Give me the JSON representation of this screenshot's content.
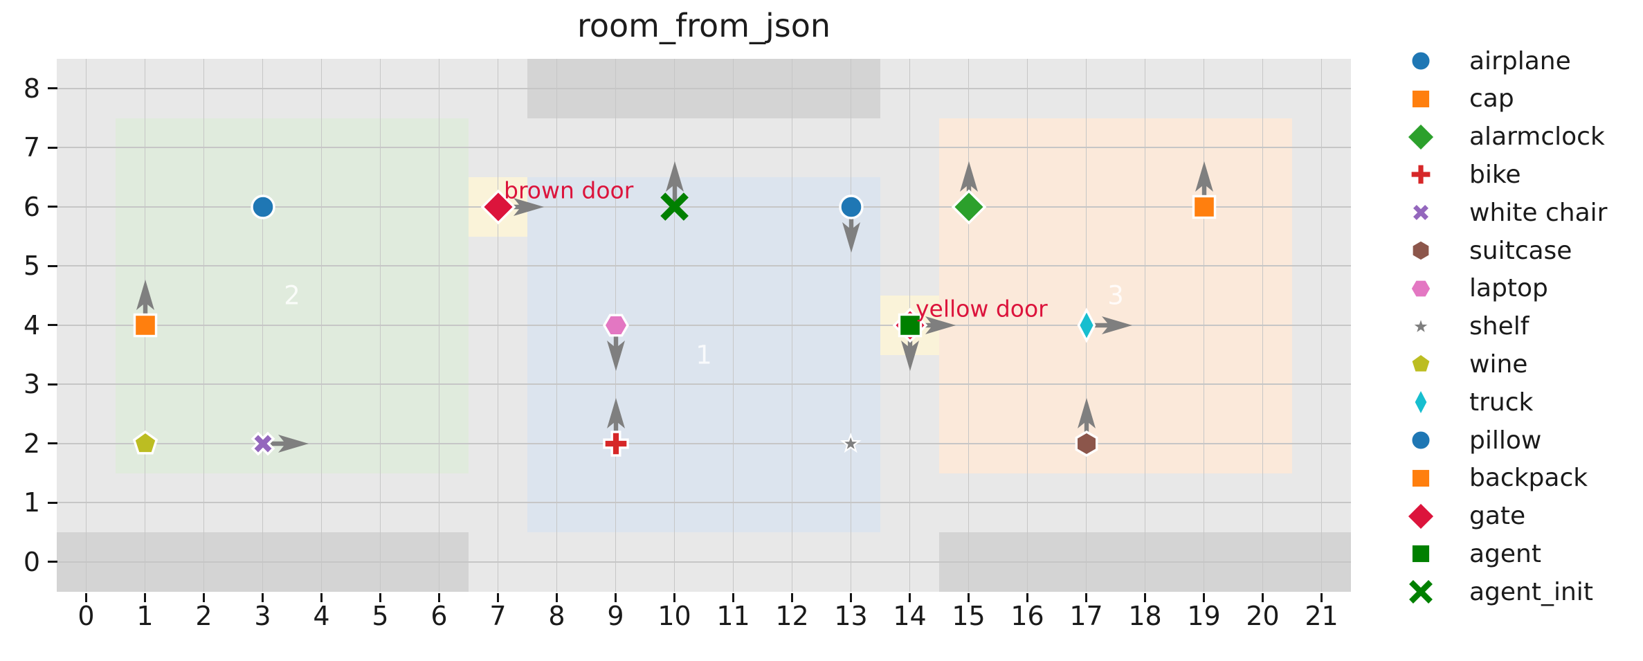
{
  "title": "room_from_json",
  "colors": {
    "figure_bg": "#ffffff",
    "plot_bg": "#e8e8e8",
    "wall_band": "#d4d4d4",
    "grid": "#c6c6c6",
    "room_1": "#dce4ee",
    "room_2": "#e0ebdd",
    "room_3": "#fbe9da",
    "door_cell": "#faf3d9",
    "door_label": "#dc143c",
    "arrow": "#7f7f7f",
    "room_label": "#f5f5f5",
    "tick_label": "#1a1a1a",
    "marker_edge": "#ffffff"
  },
  "chart_data": {
    "type": "scatter",
    "title": "room_from_json",
    "xlabel": "",
    "ylabel": "",
    "xlim": [
      -0.5,
      21.5
    ],
    "ylim": [
      -0.5,
      8.5
    ],
    "xticks": [
      0,
      1,
      2,
      3,
      4,
      5,
      6,
      7,
      8,
      9,
      10,
      11,
      12,
      13,
      14,
      15,
      16,
      17,
      18,
      19,
      20,
      21
    ],
    "yticks": [
      0,
      1,
      2,
      3,
      4,
      5,
      6,
      7,
      8
    ],
    "grid": true,
    "legend_position": "right-outside",
    "rooms": [
      {
        "id": "1",
        "x0": 7.5,
        "y0": 0.5,
        "x1": 13.5,
        "y1": 6.5,
        "color_key": "room_1",
        "label": "1",
        "label_x": 10.5,
        "label_y": 3.5
      },
      {
        "id": "2",
        "x0": 0.5,
        "y0": 1.5,
        "x1": 6.5,
        "y1": 7.5,
        "color_key": "room_2",
        "label": "2",
        "label_x": 3.5,
        "label_y": 4.5
      },
      {
        "id": "3",
        "x0": 14.5,
        "y0": 1.5,
        "x1": 20.5,
        "y1": 7.5,
        "color_key": "room_3",
        "label": "3",
        "label_x": 17.5,
        "label_y": 4.5
      }
    ],
    "wall_bands": [
      {
        "x0": 7.5,
        "y0": 7.5,
        "x1": 13.5,
        "y1": 8.5
      },
      {
        "x0": -0.5,
        "y0": -0.5,
        "x1": 6.5,
        "y1": 0.5
      },
      {
        "x0": 14.5,
        "y0": -0.5,
        "x1": 21.5,
        "y1": 0.5
      }
    ],
    "door_cells": [
      {
        "x": 7,
        "y": 6,
        "label": "brown door",
        "label_x": 7.1,
        "label_y": 6.28
      },
      {
        "x": 14,
        "y": 4,
        "label": "yellow door",
        "label_x": 14.1,
        "label_y": 4.28
      }
    ],
    "objects": [
      {
        "name": "airplane",
        "marker": "circle",
        "color": "#1f77b4",
        "x": 3,
        "y": 6,
        "dir": null
      },
      {
        "name": "cap",
        "marker": "square",
        "color": "#ff7f0e",
        "x": 1,
        "y": 4,
        "dir": "up"
      },
      {
        "name": "wine",
        "marker": "pentagon",
        "color": "#bcbd22",
        "x": 1,
        "y": 2,
        "dir": null
      },
      {
        "name": "white chair",
        "marker": "x-filled",
        "color": "#9467bd",
        "x": 3,
        "y": 2,
        "dir": "right"
      },
      {
        "name": "gate",
        "marker": "diamond",
        "color": "#dc143c",
        "x": 7,
        "y": 6,
        "dir": "right"
      },
      {
        "name": "agent_init",
        "marker": "x-stroke",
        "color": "#008000",
        "x": 10,
        "y": 6,
        "dir": "up"
      },
      {
        "name": "laptop",
        "marker": "hexagon-flat",
        "color": "#e377c2",
        "x": 9,
        "y": 4,
        "dir": "down"
      },
      {
        "name": "bike",
        "marker": "plus",
        "color": "#d62728",
        "x": 9,
        "y": 2,
        "dir": "up"
      },
      {
        "name": "pillow",
        "marker": "circle",
        "color": "#1f77b4",
        "x": 13,
        "y": 6,
        "dir": "down"
      },
      {
        "name": "shelf",
        "marker": "star",
        "color": "#7f7f7f",
        "x": 13,
        "y": 2,
        "dir": null
      },
      {
        "name": "gate",
        "marker": "diamond",
        "color": "#dc143c",
        "x": 14,
        "y": 4,
        "dir": "down"
      },
      {
        "name": "agent",
        "marker": "square",
        "color": "#008000",
        "x": 14,
        "y": 4,
        "dir": "right"
      },
      {
        "name": "alarmclock",
        "marker": "diamond",
        "color": "#2ca02c",
        "x": 15,
        "y": 6,
        "dir": "up"
      },
      {
        "name": "truck",
        "marker": "thin-diamond",
        "color": "#17becf",
        "x": 17,
        "y": 4,
        "dir": "right"
      },
      {
        "name": "suitcase",
        "marker": "hexagon-pointy",
        "color": "#8c564b",
        "x": 17,
        "y": 2,
        "dir": "up"
      },
      {
        "name": "backpack",
        "marker": "square",
        "color": "#ff7f0e",
        "x": 19,
        "y": 6,
        "dir": "up"
      }
    ],
    "legend": [
      {
        "label": "airplane",
        "marker": "circle",
        "color": "#1f77b4"
      },
      {
        "label": "cap",
        "marker": "square",
        "color": "#ff7f0e"
      },
      {
        "label": "alarmclock",
        "marker": "diamond",
        "color": "#2ca02c"
      },
      {
        "label": "bike",
        "marker": "plus",
        "color": "#d62728"
      },
      {
        "label": "white chair",
        "marker": "x-filled",
        "color": "#9467bd"
      },
      {
        "label": "suitcase",
        "marker": "hexagon-pointy",
        "color": "#8c564b"
      },
      {
        "label": "laptop",
        "marker": "hexagon-flat",
        "color": "#e377c2"
      },
      {
        "label": "shelf",
        "marker": "star",
        "color": "#7f7f7f"
      },
      {
        "label": "wine",
        "marker": "pentagon",
        "color": "#bcbd22"
      },
      {
        "label": "truck",
        "marker": "thin-diamond",
        "color": "#17becf"
      },
      {
        "label": "pillow",
        "marker": "circle",
        "color": "#1f77b4"
      },
      {
        "label": "backpack",
        "marker": "square",
        "color": "#ff7f0e"
      },
      {
        "label": "gate",
        "marker": "diamond",
        "color": "#dc143c"
      },
      {
        "label": "agent",
        "marker": "square",
        "color": "#008000"
      },
      {
        "label": "agent_init",
        "marker": "x-stroke",
        "color": "#008000"
      }
    ]
  }
}
